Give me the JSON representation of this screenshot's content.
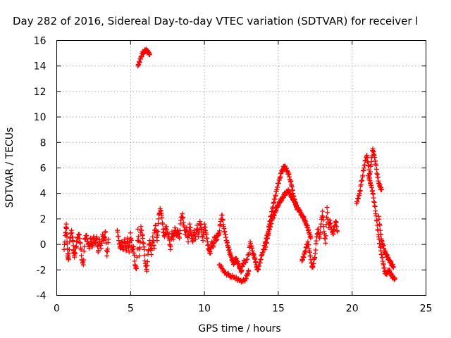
{
  "chart_data": {
    "type": "scatter",
    "title": "Day 282 of 2016, Sidereal Day-to-day VTEC variation (SDTVAR) for receiver l",
    "xlabel": "GPS time / hours",
    "ylabel": "SDTVAR / TECUs",
    "xlim": [
      0,
      25
    ],
    "ylim": [
      -4,
      16
    ],
    "xticks": [
      0,
      5,
      10,
      15,
      20,
      25
    ],
    "yticks": [
      -4,
      -2,
      0,
      2,
      4,
      6,
      8,
      10,
      12,
      14,
      16
    ],
    "grid": true,
    "marker": "+",
    "color": "#ff0000",
    "series": [
      {
        "name": "SDTVAR",
        "segments": [
          [
            [
              0.5,
              -0.4
            ],
            [
              0.6,
              0.9
            ],
            [
              0.65,
              1.6
            ],
            [
              0.7,
              0.2
            ],
            [
              0.75,
              -0.9
            ],
            [
              0.8,
              -1.2
            ],
            [
              0.9,
              0.5
            ],
            [
              1.0,
              1.1
            ],
            [
              1.1,
              0.3
            ],
            [
              1.15,
              -0.5
            ],
            [
              1.2,
              -1.0
            ],
            [
              1.3,
              -0.2
            ],
            [
              1.4,
              0.5
            ],
            [
              1.5,
              0.8
            ],
            [
              1.6,
              0.1
            ],
            [
              1.7,
              -1.2
            ],
            [
              1.8,
              -1.6
            ],
            [
              1.9,
              0.4
            ],
            [
              2.0,
              0.7
            ],
            [
              2.1,
              0.2
            ],
            [
              2.2,
              -0.3
            ],
            [
              2.3,
              0.5
            ],
            [
              2.4,
              -0.2
            ],
            [
              2.5,
              0.6
            ],
            [
              2.6,
              0.1
            ],
            [
              2.7,
              0.6
            ],
            [
              2.8,
              -0.6
            ],
            [
              2.9,
              0.4
            ],
            [
              3.0,
              -0.3
            ],
            [
              3.1,
              0.8
            ],
            [
              3.2,
              0.3
            ],
            [
              3.3,
              1.0
            ],
            [
              3.4,
              -0.9
            ],
            [
              3.5,
              0.4
            ]
          ],
          [
            [
              4.1,
              1.1
            ],
            [
              4.2,
              0.3
            ],
            [
              4.3,
              -0.3
            ],
            [
              4.4,
              0.2
            ],
            [
              4.5,
              -0.4
            ],
            [
              4.6,
              0.4
            ],
            [
              4.7,
              -0.5
            ],
            [
              4.8,
              0.5
            ],
            [
              4.9,
              -0.6
            ],
            [
              5.0,
              0.9
            ],
            [
              5.1,
              -0.5
            ],
            [
              5.2,
              -0.2
            ],
            [
              5.3,
              -1.6
            ],
            [
              5.4,
              -1.9
            ],
            [
              5.5,
              1.2
            ],
            [
              5.6,
              -0.9
            ],
            [
              5.7,
              1.4
            ],
            [
              5.8,
              0.7
            ],
            [
              5.9,
              -0.2
            ],
            [
              6.0,
              -1.5
            ],
            [
              6.1,
              -2.1
            ],
            [
              6.2,
              -0.5
            ],
            [
              6.3,
              0.3
            ],
            [
              6.4,
              -0.8
            ],
            [
              6.5,
              0.6
            ],
            [
              6.6,
              -0.3
            ]
          ],
          [
            [
              5.5,
              14.0
            ],
            [
              5.6,
              14.3
            ],
            [
              5.7,
              14.7
            ],
            [
              5.8,
              15.0
            ],
            [
              5.9,
              15.1
            ],
            [
              6.0,
              15.2
            ],
            [
              6.1,
              15.2
            ],
            [
              6.2,
              15.1
            ],
            [
              6.3,
              14.9
            ]
          ],
          [
            [
              6.6,
              0.9
            ],
            [
              6.7,
              1.5
            ],
            [
              6.8,
              0.3
            ],
            [
              6.9,
              2.0
            ],
            [
              7.0,
              2.8
            ],
            [
              7.1,
              2.3
            ],
            [
              7.2,
              1.2
            ],
            [
              7.3,
              0.6
            ],
            [
              7.4,
              1.4
            ],
            [
              7.5,
              0.9
            ],
            [
              7.6,
              0.5
            ],
            [
              7.7,
              -0.4
            ],
            [
              7.8,
              1.0
            ],
            [
              7.9,
              0.4
            ],
            [
              8.0,
              1.3
            ],
            [
              8.1,
              0.7
            ],
            [
              8.2,
              1.1
            ],
            [
              8.3,
              0.5
            ],
            [
              8.4,
              1.9
            ],
            [
              8.5,
              2.4
            ],
            [
              8.6,
              1.5
            ],
            [
              8.7,
              0.8
            ],
            [
              8.8,
              1.3
            ],
            [
              8.9,
              0.2
            ],
            [
              9.0,
              1.6
            ],
            [
              9.1,
              0.8
            ],
            [
              9.2,
              0.2
            ],
            [
              9.3,
              1.1
            ],
            [
              9.4,
              0.4
            ],
            [
              9.5,
              1.5
            ],
            [
              9.6,
              0.6
            ],
            [
              9.7,
              1.8
            ],
            [
              9.8,
              1.2
            ],
            [
              9.9,
              0.3
            ],
            [
              10.0,
              1.6
            ],
            [
              10.1,
              0.9
            ],
            [
              10.2,
              0.2
            ],
            [
              10.3,
              -0.4
            ],
            [
              10.4,
              -0.7
            ],
            [
              10.5,
              0.2
            ],
            [
              10.6,
              -0.2
            ],
            [
              10.7,
              0.6
            ],
            [
              10.8,
              0.3
            ],
            [
              10.9,
              0.7
            ],
            [
              11.0,
              0.9
            ],
            [
              11.1,
              1.8
            ],
            [
              11.2,
              2.3
            ],
            [
              11.3,
              1.4
            ],
            [
              11.4,
              0.8
            ],
            [
              11.5,
              0.3
            ],
            [
              11.6,
              -0.2
            ],
            [
              11.7,
              -0.6
            ],
            [
              11.8,
              -0.9
            ],
            [
              11.9,
              -1.3
            ],
            [
              12.0,
              -1.5
            ],
            [
              12.1,
              -1.1
            ],
            [
              12.2,
              -1.3
            ],
            [
              12.3,
              -1.5
            ],
            [
              12.4,
              -1.9
            ],
            [
              12.5,
              -2.1
            ],
            [
              12.6,
              -1.6
            ],
            [
              12.7,
              -1.3
            ]
          ],
          [
            [
              11.0,
              -1.6
            ],
            [
              11.2,
              -1.9
            ],
            [
              11.4,
              -2.2
            ],
            [
              11.6,
              -2.4
            ],
            [
              11.8,
              -2.5
            ],
            [
              12.0,
              -2.6
            ],
            [
              12.2,
              -2.7
            ],
            [
              12.4,
              -2.8
            ],
            [
              12.6,
              -2.9
            ],
            [
              12.8,
              -2.7
            ],
            [
              12.9,
              -2.4
            ],
            [
              13.0,
              -2.1
            ]
          ],
          [
            [
              12.8,
              -1.4
            ],
            [
              13.0,
              -0.8
            ],
            [
              13.1,
              0.2
            ],
            [
              13.2,
              -0.3
            ],
            [
              13.3,
              -0.7
            ],
            [
              13.4,
              -1.1
            ],
            [
              13.5,
              -1.6
            ],
            [
              13.6,
              -2.0
            ],
            [
              13.7,
              -1.7
            ],
            [
              13.8,
              -1.2
            ],
            [
              13.9,
              -0.8
            ],
            [
              14.0,
              -0.4
            ],
            [
              14.1,
              0.1
            ],
            [
              14.2,
              0.5
            ],
            [
              14.3,
              0.9
            ],
            [
              14.4,
              1.6
            ],
            [
              14.5,
              2.2
            ],
            [
              14.6,
              2.8
            ],
            [
              14.7,
              3.3
            ],
            [
              14.8,
              3.8
            ],
            [
              14.9,
              4.3
            ],
            [
              15.0,
              4.8
            ],
            [
              15.1,
              5.2
            ],
            [
              15.2,
              5.6
            ],
            [
              15.3,
              5.9
            ],
            [
              15.4,
              6.1
            ],
            [
              15.5,
              6.0
            ],
            [
              15.6,
              5.8
            ],
            [
              15.7,
              5.5
            ],
            [
              15.8,
              5.1
            ],
            [
              15.9,
              4.6
            ],
            [
              16.0,
              4.0
            ],
            [
              16.1,
              3.5
            ],
            [
              16.2,
              3.0
            ],
            [
              16.3,
              2.8
            ],
            [
              16.4,
              2.7
            ],
            [
              16.5,
              2.5
            ],
            [
              16.6,
              2.3
            ],
            [
              16.7,
              2.1
            ],
            [
              16.8,
              1.9
            ],
            [
              16.9,
              1.5
            ],
            [
              17.0,
              1.3
            ],
            [
              17.1,
              0.9
            ],
            [
              17.2,
              0.5
            ]
          ],
          [
            [
              14.1,
              -0.4
            ],
            [
              14.2,
              0.1
            ],
            [
              14.3,
              0.7
            ],
            [
              14.4,
              1.2
            ],
            [
              14.5,
              1.6
            ],
            [
              14.6,
              2.0
            ],
            [
              14.7,
              2.3
            ],
            [
              14.8,
              2.6
            ],
            [
              14.9,
              2.9
            ],
            [
              15.0,
              3.1
            ],
            [
              15.1,
              3.3
            ],
            [
              15.2,
              3.5
            ],
            [
              15.3,
              3.7
            ],
            [
              15.4,
              3.9
            ],
            [
              15.5,
              4.0
            ],
            [
              15.6,
              4.1
            ],
            [
              15.7,
              4.2
            ],
            [
              15.8,
              4.0
            ],
            [
              15.9,
              3.7
            ],
            [
              16.0,
              3.6
            ],
            [
              16.1,
              3.3
            ],
            [
              16.2,
              3.1
            ],
            [
              16.3,
              2.9
            ]
          ],
          [
            [
              16.6,
              -1.3
            ],
            [
              16.7,
              -1.0
            ],
            [
              16.8,
              -0.6
            ],
            [
              16.9,
              -0.2
            ],
            [
              17.0,
              0.2
            ],
            [
              17.1,
              -0.5
            ],
            [
              17.2,
              -1.2
            ],
            [
              17.3,
              -1.8
            ],
            [
              17.4,
              -1.5
            ],
            [
              17.5,
              -0.7
            ],
            [
              17.6,
              0.6
            ],
            [
              17.7,
              1.2
            ],
            [
              17.8,
              0.5
            ],
            [
              17.9,
              1.6
            ],
            [
              18.0,
              2.6
            ],
            [
              18.1,
              1.0
            ],
            [
              18.2,
              0.1
            ],
            [
              18.3,
              2.9
            ],
            [
              18.4,
              1.3
            ],
            [
              18.5,
              1.9
            ],
            [
              18.6,
              1.2
            ],
            [
              18.7,
              0.8
            ],
            [
              18.8,
              1.4
            ],
            [
              18.9,
              1.8
            ],
            [
              19.0,
              1.0
            ]
          ],
          [
            [
              20.3,
              3.2
            ],
            [
              20.4,
              3.6
            ],
            [
              20.5,
              4.0
            ],
            [
              20.6,
              4.7
            ],
            [
              20.7,
              5.3
            ],
            [
              20.8,
              6.0
            ],
            [
              20.9,
              6.6
            ],
            [
              21.0,
              7.0
            ],
            [
              21.1,
              6.2
            ],
            [
              21.2,
              5.5
            ],
            [
              21.3,
              6.5
            ],
            [
              21.4,
              7.5
            ],
            [
              21.5,
              7.0
            ],
            [
              21.6,
              6.3
            ],
            [
              21.7,
              5.5
            ],
            [
              21.8,
              4.8
            ],
            [
              21.9,
              4.5
            ],
            [
              22.0,
              4.3
            ]
          ],
          [
            [
              21.1,
              5.4
            ],
            [
              21.2,
              5.0
            ],
            [
              21.3,
              4.6
            ],
            [
              21.4,
              4.0
            ],
            [
              21.5,
              3.3
            ],
            [
              21.6,
              2.4
            ],
            [
              21.7,
              1.5
            ],
            [
              21.8,
              0.6
            ],
            [
              21.9,
              -0.2
            ],
            [
              22.0,
              -0.8
            ],
            [
              22.1,
              -1.5
            ],
            [
              22.2,
              -2.1
            ],
            [
              22.3,
              -2.3
            ],
            [
              22.4,
              -2.2
            ],
            [
              22.5,
              -2.0
            ],
            [
              22.6,
              -2.3
            ],
            [
              22.7,
              -2.5
            ],
            [
              22.8,
              -2.6
            ],
            [
              22.9,
              -2.7
            ]
          ],
          [
            [
              21.8,
              2.2
            ],
            [
              21.9,
              1.1
            ],
            [
              22.0,
              0.3
            ],
            [
              22.1,
              -0.1
            ],
            [
              22.2,
              -0.5
            ],
            [
              22.3,
              -0.8
            ],
            [
              22.4,
              -1.0
            ],
            [
              22.5,
              -1.2
            ],
            [
              22.6,
              -1.4
            ],
            [
              22.7,
              -1.6
            ],
            [
              22.8,
              -1.8
            ]
          ]
        ]
      }
    ]
  }
}
